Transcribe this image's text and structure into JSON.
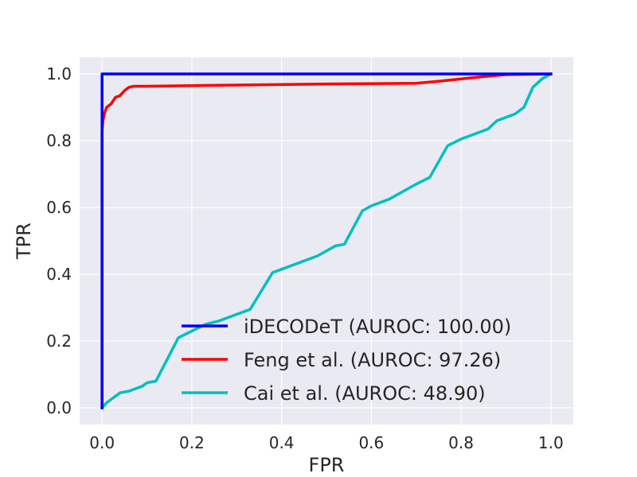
{
  "chart_data": {
    "type": "line",
    "title": "",
    "xlabel": "FPR",
    "ylabel": "TPR",
    "xlim": [
      -0.05,
      1.05
    ],
    "ylim": [
      -0.05,
      1.05
    ],
    "grid": true,
    "background": "#eaeaf2",
    "legend_position": "lower-right",
    "xticks": [
      {
        "value": 0.0,
        "label": "0.0"
      },
      {
        "value": 0.2,
        "label": "0.2"
      },
      {
        "value": 0.4,
        "label": "0.4"
      },
      {
        "value": 0.6,
        "label": "0.6"
      },
      {
        "value": 0.8,
        "label": "0.8"
      },
      {
        "value": 1.0,
        "label": "1.0"
      }
    ],
    "yticks": [
      {
        "value": 0.0,
        "label": "0.0"
      },
      {
        "value": 0.2,
        "label": "0.2"
      },
      {
        "value": 0.4,
        "label": "0.4"
      },
      {
        "value": 0.6,
        "label": "0.6"
      },
      {
        "value": 0.8,
        "label": "0.8"
      },
      {
        "value": 1.0,
        "label": "1.0"
      }
    ],
    "series": [
      {
        "name": "iDECODeT (AUROC: 100.00)",
        "color": "#0000ff",
        "x": [
          0.0,
          0.0,
          0.0,
          1.0
        ],
        "y": [
          0.0,
          0.86,
          1.0,
          1.0
        ]
      },
      {
        "name": "Feng et al. (AUROC: 97.26)",
        "color": "#ff0000",
        "x": [
          0.0,
          0.0,
          0.002,
          0.005,
          0.01,
          0.02,
          0.03,
          0.04,
          0.05,
          0.06,
          0.07,
          0.1,
          0.2,
          0.5,
          0.7,
          0.75,
          0.8,
          0.85,
          0.9,
          1.0
        ],
        "y": [
          0.0,
          0.83,
          0.86,
          0.88,
          0.9,
          0.91,
          0.93,
          0.935,
          0.95,
          0.96,
          0.963,
          0.963,
          0.965,
          0.97,
          0.972,
          0.978,
          0.985,
          0.992,
          0.998,
          1.0
        ],
        "comment_removed": ""
      },
      {
        "name": "Cai et al. (AUROC: 48.90)",
        "color": "#00bfbf",
        "x": [
          0.0,
          0.01,
          0.02,
          0.03,
          0.04,
          0.06,
          0.08,
          0.09,
          0.1,
          0.12,
          0.17,
          0.2,
          0.23,
          0.26,
          0.3,
          0.31,
          0.33,
          0.38,
          0.4,
          0.42,
          0.44,
          0.46,
          0.48,
          0.5,
          0.52,
          0.54,
          0.58,
          0.6,
          0.62,
          0.64,
          0.66,
          0.68,
          0.7,
          0.73,
          0.77,
          0.8,
          0.83,
          0.86,
          0.88,
          0.9,
          0.92,
          0.94,
          0.96,
          0.98,
          1.0
        ],
        "y": [
          0.0,
          0.015,
          0.025,
          0.035,
          0.045,
          0.05,
          0.06,
          0.065,
          0.075,
          0.08,
          0.21,
          0.23,
          0.25,
          0.26,
          0.28,
          0.285,
          0.295,
          0.405,
          0.415,
          0.425,
          0.435,
          0.445,
          0.455,
          0.47,
          0.485,
          0.49,
          0.59,
          0.605,
          0.615,
          0.625,
          0.64,
          0.655,
          0.67,
          0.69,
          0.785,
          0.805,
          0.82,
          0.835,
          0.86,
          0.87,
          0.88,
          0.9,
          0.96,
          0.985,
          1.0
        ]
      }
    ]
  }
}
